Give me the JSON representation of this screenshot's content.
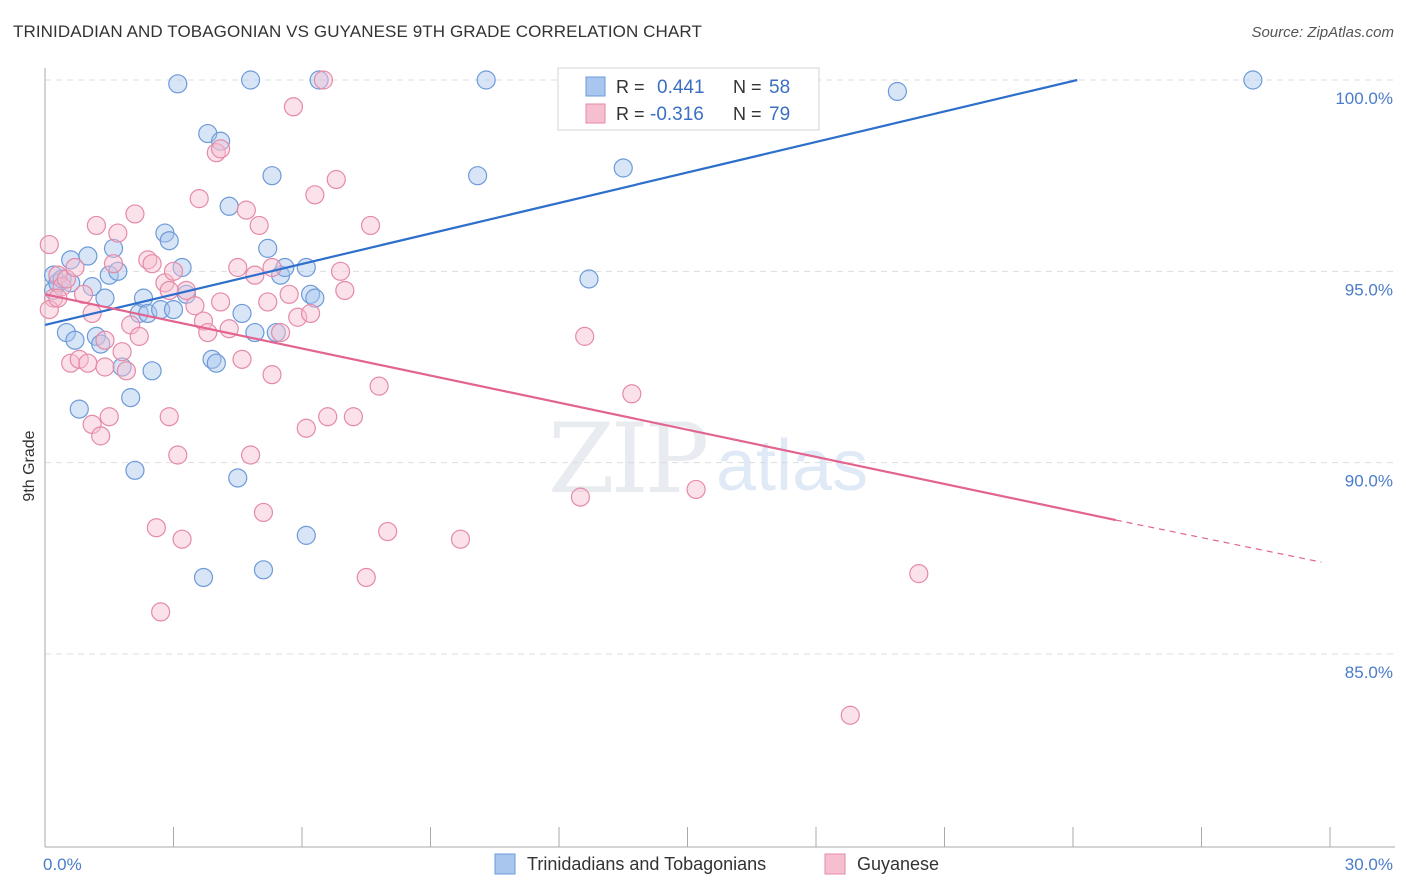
{
  "title": "TRINIDADIAN AND TOBAGONIAN VS GUYANESE 9TH GRADE CORRELATION CHART",
  "source": "Source: ZipAtlas.com",
  "watermark": {
    "zip": "ZIP",
    "atlas": "atlas"
  },
  "legend": {
    "rows": [
      {
        "r_label": "R =",
        "r_value": "0.441",
        "n_label": "N =",
        "n_value": "58"
      },
      {
        "r_label": "R =",
        "r_value": "-0.316",
        "n_label": "N =",
        "n_value": "79"
      }
    ]
  },
  "colors": {
    "blue_fill": "#a9c6ee",
    "blue_stroke": "#6d9ad8",
    "blue_line": "#2e6fcc",
    "pink_fill": "#f6bfd0",
    "pink_stroke": "#e58aa7",
    "pink_line": "#e2648f",
    "tick_text": "#4a7cc9",
    "grid": "#dddddd"
  },
  "chart_data": {
    "type": "scatter",
    "title": "TRINIDADIAN AND TOBAGONIAN VS GUYANESE 9TH GRADE CORRELATION CHART",
    "xlabel": "",
    "ylabel": "9th Grade",
    "xlim": [
      0,
      30
    ],
    "ylim": [
      80.5,
      100.5
    ],
    "x_tick_labels": [
      "0.0%",
      "30.0%"
    ],
    "y_ticks": [
      85,
      90,
      95,
      100
    ],
    "y_tick_labels": [
      "85.0%",
      "90.0%",
      "95.0%",
      "100.0%"
    ],
    "series": [
      {
        "name": "Trinidadians and Tobagonians",
        "color": "blue",
        "r": 0.441,
        "n": 58,
        "trend": {
          "x0": 0,
          "y0": 93.6,
          "x1": 24.1,
          "y1": 100.0,
          "dash_to_x": 24.1
        },
        "points": [
          [
            0.2,
            94.9
          ],
          [
            0.2,
            94.5
          ],
          [
            0.3,
            94.7
          ],
          [
            0.4,
            94.8
          ],
          [
            0.5,
            93.4
          ],
          [
            0.6,
            95.3
          ],
          [
            0.7,
            93.2
          ],
          [
            0.8,
            91.4
          ],
          [
            1.0,
            95.4
          ],
          [
            1.1,
            94.6
          ],
          [
            1.2,
            93.3
          ],
          [
            1.3,
            93.1
          ],
          [
            1.4,
            94.3
          ],
          [
            1.5,
            94.9
          ],
          [
            1.6,
            95.6
          ],
          [
            1.7,
            95.0
          ],
          [
            1.8,
            92.5
          ],
          [
            2.0,
            91.7
          ],
          [
            2.1,
            89.8
          ],
          [
            2.2,
            93.9
          ],
          [
            2.3,
            94.3
          ],
          [
            2.4,
            93.9
          ],
          [
            2.5,
            92.4
          ],
          [
            2.7,
            94.0
          ],
          [
            2.8,
            96.0
          ],
          [
            2.9,
            95.8
          ],
          [
            3.1,
            99.9
          ],
          [
            3.2,
            95.1
          ],
          [
            3.3,
            94.4
          ],
          [
            3.7,
            87.0
          ],
          [
            3.8,
            98.6
          ],
          [
            3.9,
            92.7
          ],
          [
            4.0,
            92.6
          ],
          [
            4.1,
            98.4
          ],
          [
            4.3,
            96.7
          ],
          [
            4.5,
            89.6
          ],
          [
            4.6,
            93.9
          ],
          [
            4.8,
            100.0
          ],
          [
            4.9,
            93.4
          ],
          [
            5.1,
            87.2
          ],
          [
            5.2,
            95.6
          ],
          [
            5.3,
            97.5
          ],
          [
            5.4,
            93.4
          ],
          [
            5.5,
            94.9
          ],
          [
            5.6,
            95.1
          ],
          [
            6.1,
            88.1
          ],
          [
            6.2,
            94.4
          ],
          [
            6.4,
            100.0
          ],
          [
            6.1,
            95.1
          ],
          [
            6.3,
            94.3
          ],
          [
            10.1,
            97.5
          ],
          [
            10.3,
            100.0
          ],
          [
            12.7,
            94.8
          ],
          [
            13.5,
            97.7
          ],
          [
            19.9,
            99.7
          ],
          [
            28.2,
            100.0
          ],
          [
            3.0,
            94.0
          ],
          [
            0.6,
            94.7
          ]
        ]
      },
      {
        "name": "Guyanese",
        "color": "pink",
        "r": -0.316,
        "n": 79,
        "trend": {
          "x0": 0,
          "y0": 94.4,
          "x1": 25.0,
          "y1": 88.5,
          "dash_to_x": 29.8,
          "dash_to_y": 87.4
        },
        "points": [
          [
            0.1,
            95.7
          ],
          [
            0.2,
            94.3
          ],
          [
            0.3,
            94.9
          ],
          [
            0.4,
            94.6
          ],
          [
            0.5,
            94.8
          ],
          [
            0.6,
            92.6
          ],
          [
            0.7,
            95.1
          ],
          [
            0.8,
            92.7
          ],
          [
            0.9,
            94.4
          ],
          [
            1.0,
            92.6
          ],
          [
            1.1,
            93.9
          ],
          [
            1.1,
            91.0
          ],
          [
            1.2,
            96.2
          ],
          [
            1.3,
            90.7
          ],
          [
            1.4,
            93.2
          ],
          [
            1.5,
            91.2
          ],
          [
            1.6,
            95.2
          ],
          [
            1.7,
            96.0
          ],
          [
            1.8,
            92.9
          ],
          [
            1.9,
            92.4
          ],
          [
            2.0,
            93.6
          ],
          [
            2.1,
            96.5
          ],
          [
            2.2,
            93.3
          ],
          [
            2.4,
            95.3
          ],
          [
            2.5,
            95.2
          ],
          [
            2.6,
            88.3
          ],
          [
            2.7,
            86.1
          ],
          [
            2.8,
            94.7
          ],
          [
            2.9,
            91.2
          ],
          [
            3.0,
            95.0
          ],
          [
            3.1,
            90.2
          ],
          [
            3.2,
            88.0
          ],
          [
            3.3,
            94.5
          ],
          [
            3.5,
            94.1
          ],
          [
            3.6,
            96.9
          ],
          [
            3.7,
            93.7
          ],
          [
            3.8,
            93.4
          ],
          [
            4.0,
            98.1
          ],
          [
            4.1,
            98.2
          ],
          [
            4.3,
            93.5
          ],
          [
            4.5,
            95.1
          ],
          [
            4.6,
            92.7
          ],
          [
            4.7,
            96.6
          ],
          [
            4.8,
            90.2
          ],
          [
            4.9,
            94.9
          ],
          [
            5.0,
            96.2
          ],
          [
            5.1,
            88.7
          ],
          [
            5.2,
            94.2
          ],
          [
            5.3,
            95.1
          ],
          [
            5.5,
            93.4
          ],
          [
            5.7,
            94.4
          ],
          [
            5.8,
            99.3
          ],
          [
            5.9,
            93.8
          ],
          [
            6.1,
            90.9
          ],
          [
            6.2,
            93.9
          ],
          [
            6.3,
            97.0
          ],
          [
            6.5,
            100.0
          ],
          [
            6.6,
            91.2
          ],
          [
            6.8,
            97.4
          ],
          [
            6.9,
            95.0
          ],
          [
            7.0,
            94.5
          ],
          [
            7.2,
            91.2
          ],
          [
            7.5,
            87.0
          ],
          [
            7.6,
            96.2
          ],
          [
            7.8,
            92.0
          ],
          [
            8.0,
            88.2
          ],
          [
            9.7,
            88.0
          ],
          [
            12.5,
            89.1
          ],
          [
            12.6,
            93.3
          ],
          [
            13.7,
            91.8
          ],
          [
            15.2,
            89.3
          ],
          [
            18.8,
            83.4
          ],
          [
            20.4,
            87.1
          ],
          [
            0.1,
            94.0
          ],
          [
            0.3,
            94.3
          ],
          [
            1.4,
            92.5
          ],
          [
            2.9,
            94.5
          ],
          [
            4.1,
            94.2
          ],
          [
            5.3,
            92.3
          ]
        ]
      }
    ],
    "legend": [
      "Trinidadians and Tobagonians",
      "Guyanese"
    ]
  }
}
